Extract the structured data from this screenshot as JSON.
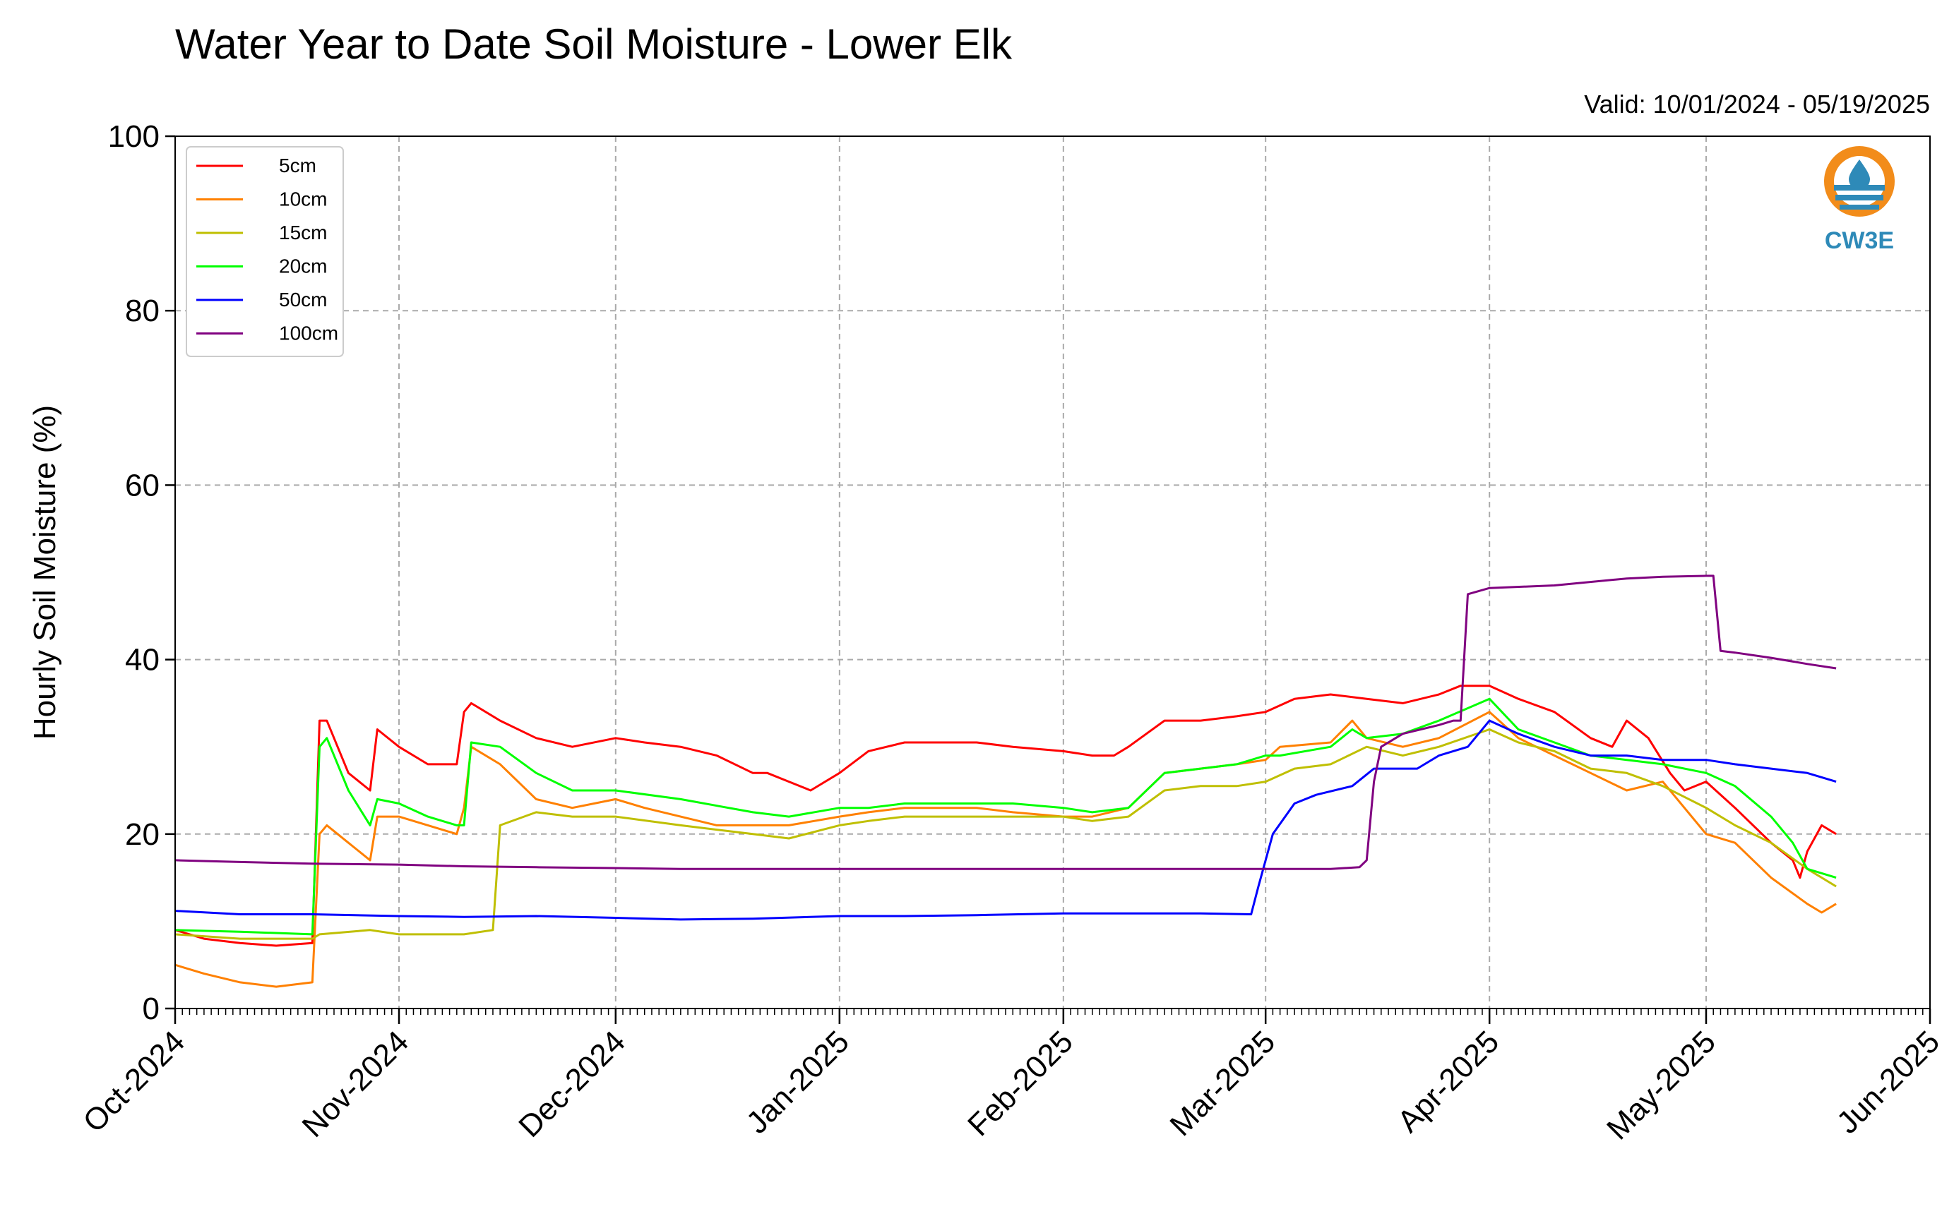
{
  "chart_data": {
    "type": "line",
    "title": "Water Year to Date Soil Moisture - Lower Elk",
    "subtitle": "Valid: 10/01/2024 - 05/19/2025",
    "xlabel": "",
    "ylabel": "Hourly Soil Moisture (%)",
    "ylim": [
      0,
      100
    ],
    "xlim": [
      "2024-10-01",
      "2025-06-01"
    ],
    "yticks": [
      0,
      20,
      40,
      60,
      80,
      100
    ],
    "xticks": [
      {
        "date": "2024-10-01",
        "label": "Oct-2024"
      },
      {
        "date": "2024-11-01",
        "label": "Nov-2024"
      },
      {
        "date": "2024-12-01",
        "label": "Dec-2024"
      },
      {
        "date": "2025-01-01",
        "label": "Jan-2025"
      },
      {
        "date": "2025-02-01",
        "label": "Feb-2025"
      },
      {
        "date": "2025-03-01",
        "label": "Mar-2025"
      },
      {
        "date": "2025-04-01",
        "label": "Apr-2025"
      },
      {
        "date": "2025-05-01",
        "label": "May-2025"
      },
      {
        "date": "2025-06-01",
        "label": "Jun-2025"
      }
    ],
    "grid": true,
    "legend_position": "top-left",
    "series": [
      {
        "name": "5cm",
        "color": "#ff0000",
        "x": [
          "2024-10-01",
          "2024-10-05",
          "2024-10-10",
          "2024-10-15",
          "2024-10-20",
          "2024-10-21",
          "2024-10-22",
          "2024-10-25",
          "2024-10-28",
          "2024-10-29",
          "2024-11-01",
          "2024-11-05",
          "2024-11-09",
          "2024-11-10",
          "2024-11-11",
          "2024-11-15",
          "2024-11-20",
          "2024-11-25",
          "2024-12-01",
          "2024-12-05",
          "2024-12-10",
          "2024-12-15",
          "2024-12-20",
          "2024-12-22",
          "2024-12-25",
          "2024-12-28",
          "2025-01-01",
          "2025-01-05",
          "2025-01-10",
          "2025-01-15",
          "2025-01-20",
          "2025-01-25",
          "2025-02-01",
          "2025-02-05",
          "2025-02-08",
          "2025-02-10",
          "2025-02-15",
          "2025-02-20",
          "2025-02-25",
          "2025-03-01",
          "2025-03-05",
          "2025-03-10",
          "2025-03-15",
          "2025-03-20",
          "2025-03-25",
          "2025-03-28",
          "2025-04-01",
          "2025-04-05",
          "2025-04-10",
          "2025-04-15",
          "2025-04-18",
          "2025-04-20",
          "2025-04-23",
          "2025-04-26",
          "2025-04-28",
          "2025-05-01",
          "2025-05-05",
          "2025-05-10",
          "2025-05-13",
          "2025-05-14",
          "2025-05-15",
          "2025-05-17",
          "2025-05-19"
        ],
        "y": [
          9,
          8,
          7.5,
          7.2,
          7.5,
          33,
          33,
          27,
          25,
          32,
          30,
          28,
          28,
          34,
          35,
          33,
          31,
          30,
          31,
          30.5,
          30,
          29,
          27,
          27,
          26,
          25,
          27,
          29.5,
          30.5,
          30.5,
          30.5,
          30,
          29.5,
          29,
          29,
          30,
          33,
          33,
          33.5,
          34,
          35.5,
          36,
          35.5,
          35,
          36,
          37,
          37,
          35.5,
          34,
          31,
          30,
          33,
          31,
          27,
          25,
          26,
          23,
          19,
          17,
          15,
          18,
          21,
          20
        ]
      },
      {
        "name": "10cm",
        "color": "#ff8000",
        "x": [
          "2024-10-01",
          "2024-10-05",
          "2024-10-10",
          "2024-10-15",
          "2024-10-20",
          "2024-10-21",
          "2024-10-22",
          "2024-10-25",
          "2024-10-28",
          "2024-10-29",
          "2024-11-01",
          "2024-11-05",
          "2024-11-09",
          "2024-11-10",
          "2024-11-11",
          "2024-11-15",
          "2024-11-20",
          "2024-11-25",
          "2024-12-01",
          "2024-12-05",
          "2024-12-10",
          "2024-12-15",
          "2024-12-20",
          "2024-12-25",
          "2025-01-01",
          "2025-01-05",
          "2025-01-10",
          "2025-01-15",
          "2025-01-20",
          "2025-01-25",
          "2025-02-01",
          "2025-02-05",
          "2025-02-10",
          "2025-02-15",
          "2025-02-20",
          "2025-02-25",
          "2025-03-01",
          "2025-03-03",
          "2025-03-10",
          "2025-03-13",
          "2025-03-15",
          "2025-03-20",
          "2025-03-25",
          "2025-04-01",
          "2025-04-05",
          "2025-04-10",
          "2025-04-15",
          "2025-04-20",
          "2025-04-25",
          "2025-05-01",
          "2025-05-05",
          "2025-05-10",
          "2025-05-15",
          "2025-05-17",
          "2025-05-19"
        ],
        "y": [
          5,
          4,
          3,
          2.5,
          3,
          20,
          21,
          19,
          17,
          22,
          22,
          21,
          20,
          23,
          30,
          28,
          24,
          23,
          24,
          23,
          22,
          21,
          21,
          21,
          22,
          22.5,
          23,
          23,
          23,
          22.5,
          22,
          22,
          23,
          27,
          27.5,
          28,
          28.5,
          30,
          30.5,
          33,
          31,
          30,
          31,
          34,
          31,
          29,
          27,
          25,
          26,
          20,
          19,
          15,
          12,
          11,
          12
        ]
      },
      {
        "name": "15cm",
        "color": "#bfbf00",
        "x": [
          "2024-10-01",
          "2024-10-10",
          "2024-10-20",
          "2024-10-21",
          "2024-10-28",
          "2024-11-01",
          "2024-11-10",
          "2024-11-14",
          "2024-11-15",
          "2024-11-20",
          "2024-11-25",
          "2024-12-01",
          "2024-12-10",
          "2024-12-20",
          "2024-12-25",
          "2025-01-01",
          "2025-01-05",
          "2025-01-10",
          "2025-01-20",
          "2025-01-25",
          "2025-02-01",
          "2025-02-05",
          "2025-02-10",
          "2025-02-15",
          "2025-02-20",
          "2025-02-25",
          "2025-03-01",
          "2025-03-05",
          "2025-03-10",
          "2025-03-15",
          "2025-03-20",
          "2025-03-25",
          "2025-04-01",
          "2025-04-05",
          "2025-04-10",
          "2025-04-15",
          "2025-04-20",
          "2025-04-25",
          "2025-05-01",
          "2025-05-05",
          "2025-05-10",
          "2025-05-15",
          "2025-05-19"
        ],
        "y": [
          8.5,
          8,
          8,
          8.5,
          9,
          8.5,
          8.5,
          9,
          21,
          22.5,
          22,
          22,
          21,
          20,
          19.5,
          21,
          21.5,
          22,
          22,
          22,
          22,
          21.5,
          22,
          25,
          25.5,
          25.5,
          26,
          27.5,
          28,
          30,
          29,
          30,
          32,
          30.5,
          29.5,
          27.5,
          27,
          25.5,
          23,
          21,
          19,
          16,
          14
        ]
      },
      {
        "name": "20cm",
        "color": "#00ff00",
        "x": [
          "2024-10-01",
          "2024-10-10",
          "2024-10-20",
          "2024-10-21",
          "2024-10-22",
          "2024-10-25",
          "2024-10-28",
          "2024-10-29",
          "2024-11-01",
          "2024-11-05",
          "2024-11-09",
          "2024-11-10",
          "2024-11-11",
          "2024-11-15",
          "2024-11-20",
          "2024-11-25",
          "2024-12-01",
          "2024-12-10",
          "2024-12-20",
          "2024-12-25",
          "2025-01-01",
          "2025-01-05",
          "2025-01-10",
          "2025-01-20",
          "2025-01-25",
          "2025-02-01",
          "2025-02-05",
          "2025-02-10",
          "2025-02-15",
          "2025-02-20",
          "2025-02-25",
          "2025-03-01",
          "2025-03-03",
          "2025-03-10",
          "2025-03-13",
          "2025-03-15",
          "2025-03-20",
          "2025-03-25",
          "2025-04-01",
          "2025-04-05",
          "2025-04-10",
          "2025-04-15",
          "2025-04-20",
          "2025-04-25",
          "2025-05-01",
          "2025-05-05",
          "2025-05-10",
          "2025-05-13",
          "2025-05-15",
          "2025-05-19"
        ],
        "y": [
          9,
          8.8,
          8.5,
          30,
          31,
          25,
          21,
          24,
          23.5,
          22,
          21,
          21,
          30.5,
          30,
          27,
          25,
          25,
          24,
          22.5,
          22,
          23,
          23,
          23.5,
          23.5,
          23.5,
          23,
          22.5,
          23,
          27,
          27.5,
          28,
          29,
          29,
          30,
          32,
          31,
          31.5,
          33,
          35.5,
          32,
          30.5,
          29,
          28.5,
          28,
          27,
          25.5,
          22,
          19,
          16,
          15
        ]
      },
      {
        "name": "50cm",
        "color": "#0000ff",
        "x": [
          "2024-10-01",
          "2024-10-10",
          "2024-10-20",
          "2024-11-01",
          "2024-11-10",
          "2024-11-20",
          "2024-12-01",
          "2024-12-10",
          "2024-12-20",
          "2025-01-01",
          "2025-01-10",
          "2025-01-20",
          "2025-02-01",
          "2025-02-10",
          "2025-02-20",
          "2025-02-27",
          "2025-02-28",
          "2025-03-02",
          "2025-03-05",
          "2025-03-08",
          "2025-03-13",
          "2025-03-16",
          "2025-03-22",
          "2025-03-23",
          "2025-03-25",
          "2025-03-29",
          "2025-04-01",
          "2025-04-05",
          "2025-04-10",
          "2025-04-15",
          "2025-04-20",
          "2025-04-25",
          "2025-05-01",
          "2025-05-05",
          "2025-05-10",
          "2025-05-15",
          "2025-05-19"
        ],
        "y": [
          11.2,
          10.8,
          10.8,
          10.6,
          10.5,
          10.6,
          10.4,
          10.2,
          10.3,
          10.6,
          10.6,
          10.7,
          10.9,
          10.9,
          10.9,
          10.8,
          14,
          20,
          23.5,
          24.5,
          25.5,
          27.5,
          27.5,
          28,
          29,
          30,
          33,
          31.5,
          30,
          29,
          29,
          28.5,
          28.5,
          28,
          27.5,
          27,
          26
        ]
      },
      {
        "name": "100cm",
        "color": "#800080",
        "x": [
          "2024-10-01",
          "2024-10-10",
          "2024-10-20",
          "2024-11-01",
          "2024-11-10",
          "2024-11-20",
          "2024-12-01",
          "2024-12-10",
          "2024-12-20",
          "2025-01-01",
          "2025-01-10",
          "2025-01-20",
          "2025-02-01",
          "2025-02-10",
          "2025-02-20",
          "2025-03-01",
          "2025-03-10",
          "2025-03-14",
          "2025-03-15",
          "2025-03-16",
          "2025-03-17",
          "2025-03-20",
          "2025-03-25",
          "2025-03-27",
          "2025-03-28",
          "2025-03-29",
          "2025-04-01",
          "2025-04-10",
          "2025-04-20",
          "2025-04-25",
          "2025-05-01",
          "2025-05-02",
          "2025-05-03",
          "2025-05-05",
          "2025-05-10",
          "2025-05-15",
          "2025-05-19"
        ],
        "y": [
          17,
          16.8,
          16.6,
          16.5,
          16.3,
          16.2,
          16.1,
          16,
          16,
          16,
          16,
          16,
          16,
          16,
          16,
          16,
          16,
          16.2,
          17,
          26,
          30,
          31.5,
          32.5,
          33,
          33,
          47.5,
          48.2,
          48.5,
          49.3,
          49.5,
          49.6,
          49.6,
          41,
          40.8,
          40.2,
          39.5,
          39
        ]
      }
    ]
  }
}
